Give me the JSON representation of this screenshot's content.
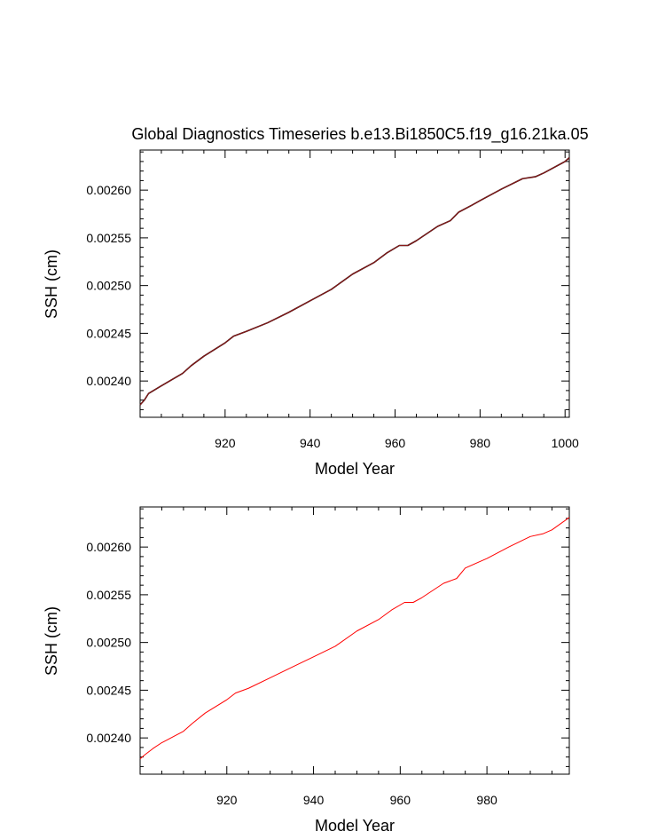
{
  "title": "Global Diagnostics Timeseries b.e13.Bi1850C5.f19_g16.21ka.05",
  "colors": {
    "top_line": "#8b1a1a",
    "top_line_dark": "#2b0000",
    "bottom_line": "#ff0000",
    "axis": "#000000"
  },
  "chart_data": [
    {
      "type": "line",
      "title": "Global Diagnostics Timeseries b.e13.Bi1850C5.f19_g16.21ka.05",
      "xlabel": "Model Year",
      "ylabel": "SSH (cm)",
      "xlim": [
        900,
        1001
      ],
      "ylim": [
        0.002362,
        0.002642
      ],
      "xticks": [
        920,
        940,
        960,
        980,
        1000
      ],
      "xtick_labels": [
        "920",
        "940",
        "960",
        "980",
        "1000"
      ],
      "yticks": [
        0.0024,
        0.00245,
        0.0025,
        0.00255,
        0.0026
      ],
      "ytick_labels": [
        "0.00240",
        "0.00245",
        "0.00250",
        "0.00255",
        "0.00260"
      ],
      "grid": false,
      "series": [
        {
          "x": [
            900,
            901,
            902,
            905,
            910,
            912,
            915,
            920,
            922,
            925,
            930,
            935,
            940,
            945,
            950,
            955,
            958,
            961,
            963,
            965,
            970,
            973,
            975,
            978,
            980,
            985,
            990,
            993,
            995,
            1000,
            1001
          ],
          "y": [
            0.002375,
            0.00238,
            0.002387,
            0.002395,
            0.002408,
            0.002416,
            0.002426,
            0.00244,
            0.002447,
            0.002452,
            0.002461,
            0.002472,
            0.002484,
            0.002496,
            0.002512,
            0.002524,
            0.002534,
            0.002542,
            0.002542,
            0.002547,
            0.002562,
            0.002568,
            0.002577,
            0.002584,
            0.002589,
            0.002601,
            0.002612,
            0.002614,
            0.002618,
            0.00263,
            0.002634
          ]
        }
      ]
    },
    {
      "type": "line",
      "xlabel": "Model Year",
      "ylabel": "SSH (cm)",
      "xlim": [
        900,
        999
      ],
      "ylim": [
        0.002362,
        0.002642
      ],
      "xticks": [
        920,
        940,
        960,
        980
      ],
      "xtick_labels": [
        "920",
        "940",
        "960",
        "980"
      ],
      "yticks": [
        0.0024,
        0.00245,
        0.0025,
        0.00255,
        0.0026
      ],
      "ytick_labels": [
        "0.00240",
        "0.00245",
        "0.00250",
        "0.00255",
        "0.00260"
      ],
      "grid": false,
      "series": [
        {
          "x": [
            900,
            901,
            903,
            905,
            910,
            912,
            915,
            920,
            922,
            925,
            930,
            935,
            940,
            945,
            950,
            955,
            958,
            961,
            963,
            965,
            970,
            973,
            975,
            978,
            980,
            985,
            990,
            993,
            995,
            999
          ],
          "y": [
            0.002378,
            0.002382,
            0.002389,
            0.002395,
            0.002407,
            0.002415,
            0.002426,
            0.00244,
            0.002447,
            0.002452,
            0.002463,
            0.002474,
            0.002485,
            0.002496,
            0.002512,
            0.002524,
            0.002534,
            0.002542,
            0.002542,
            0.002547,
            0.002562,
            0.002567,
            0.002578,
            0.002584,
            0.002588,
            0.0026,
            0.002611,
            0.002614,
            0.002618,
            0.002631
          ]
        }
      ]
    }
  ]
}
